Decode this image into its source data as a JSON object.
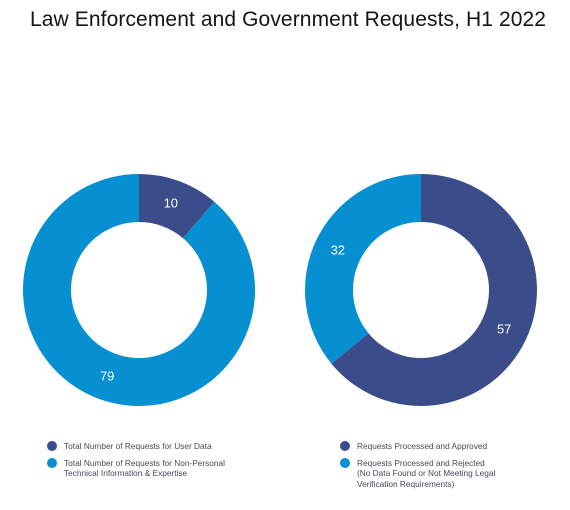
{
  "title": "Law Enforcement and Government Requests, H1 2022",
  "colors": {
    "dark": "#3a4d8a",
    "light": "#0690d1"
  },
  "chart_data": [
    {
      "type": "pie",
      "variant": "donut",
      "labels": [
        "Total Number of Requests for User Data",
        "Total Number of Requests for Non-Personal\nTechnical Information & Expertise"
      ],
      "values": [
        10,
        79
      ],
      "colors": [
        "#3a4d8a",
        "#0690d1"
      ],
      "legend_position": "bottom"
    },
    {
      "type": "pie",
      "variant": "donut",
      "labels": [
        "Requests Processed and Approved",
        "Requests Processed and Rejected\n(No Data Found or Not Meeting Legal\nVerification Requirements)"
      ],
      "values": [
        57,
        32
      ],
      "colors": [
        "#3a4d8a",
        "#0690d1"
      ],
      "legend_position": "bottom"
    }
  ]
}
